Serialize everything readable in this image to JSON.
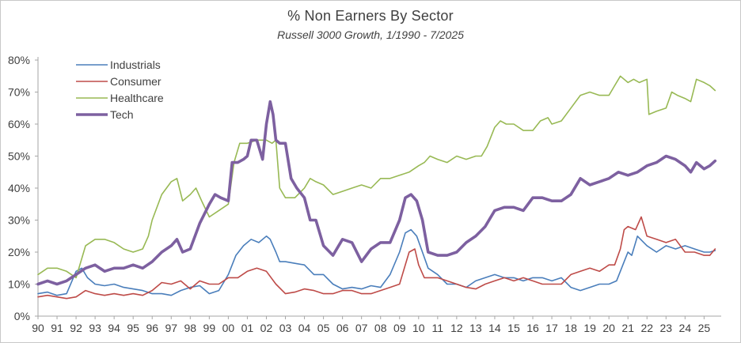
{
  "chart_data": {
    "type": "line",
    "title": "% Non Earners By Sector",
    "subtitle": "Russell 3000 Growth, 1/1990 - 7/2025",
    "xlabel": "",
    "ylabel": "",
    "xlim": [
      1990,
      2025.9
    ],
    "ylim": [
      0,
      0.8
    ],
    "grid": false,
    "legend_position": "top-left",
    "x_tick_labels": [
      "90",
      "91",
      "92",
      "93",
      "94",
      "95",
      "96",
      "97",
      "98",
      "99",
      "00",
      "01",
      "02",
      "03",
      "04",
      "05",
      "06",
      "07",
      "08",
      "09",
      "10",
      "11",
      "12",
      "13",
      "14",
      "15",
      "16",
      "17",
      "18",
      "19",
      "20",
      "21",
      "22",
      "23",
      "24",
      "25"
    ],
    "y_tick_labels": [
      "0%",
      "10%",
      "20%",
      "30%",
      "40%",
      "50%",
      "60%",
      "70%",
      "80%"
    ],
    "y_ticks": [
      0,
      0.1,
      0.2,
      0.3,
      0.4,
      0.5,
      0.6,
      0.7,
      0.8
    ],
    "series": [
      {
        "name": "Industrials",
        "color": "#4a7ebb",
        "width": 1.6,
        "x": [
          1990.0,
          1990.5,
          1991.0,
          1991.5,
          1992.0,
          1992.3,
          1992.6,
          1993.0,
          1993.5,
          1994.0,
          1994.5,
          1995.0,
          1995.5,
          1996.0,
          1996.5,
          1997.0,
          1997.5,
          1998.0,
          1998.5,
          1999.0,
          1999.5,
          2000.0,
          2000.4,
          2000.8,
          2001.2,
          2001.6,
          2002.0,
          2002.2,
          2002.5,
          2002.7,
          2003.0,
          2003.5,
          2004.0,
          2004.5,
          2005.0,
          2005.5,
          2006.0,
          2006.5,
          2007.0,
          2007.5,
          2008.0,
          2008.5,
          2009.0,
          2009.3,
          2009.6,
          2009.9,
          2010.2,
          2010.5,
          2011.0,
          2011.5,
          2012.0,
          2012.5,
          2013.0,
          2013.5,
          2014.0,
          2014.5,
          2015.0,
          2015.5,
          2016.0,
          2016.5,
          2017.0,
          2017.5,
          2018.0,
          2018.5,
          2019.0,
          2019.5,
          2020.0,
          2020.4,
          2020.8,
          2021.0,
          2021.2,
          2021.5,
          2022.0,
          2022.5,
          2023.0,
          2023.5,
          2024.0,
          2024.5,
          2025.0,
          2025.3,
          2025.58
        ],
        "y": [
          0.07,
          0.075,
          0.065,
          0.07,
          0.14,
          0.15,
          0.12,
          0.1,
          0.095,
          0.1,
          0.09,
          0.085,
          0.08,
          0.07,
          0.07,
          0.065,
          0.08,
          0.09,
          0.095,
          0.07,
          0.08,
          0.13,
          0.19,
          0.22,
          0.24,
          0.23,
          0.25,
          0.24,
          0.2,
          0.17,
          0.17,
          0.165,
          0.16,
          0.13,
          0.13,
          0.1,
          0.085,
          0.09,
          0.085,
          0.095,
          0.09,
          0.13,
          0.2,
          0.26,
          0.27,
          0.25,
          0.2,
          0.15,
          0.13,
          0.1,
          0.1,
          0.09,
          0.11,
          0.12,
          0.13,
          0.12,
          0.12,
          0.11,
          0.12,
          0.12,
          0.11,
          0.12,
          0.09,
          0.08,
          0.09,
          0.1,
          0.1,
          0.11,
          0.17,
          0.2,
          0.19,
          0.25,
          0.22,
          0.2,
          0.22,
          0.21,
          0.22,
          0.21,
          0.2,
          0.2,
          0.205
        ]
      },
      {
        "name": "Consumer",
        "color": "#be4b48",
        "width": 1.6,
        "x": [
          1990.0,
          1990.5,
          1991.0,
          1991.5,
          1992.0,
          1992.5,
          1993.0,
          1993.5,
          1994.0,
          1994.5,
          1995.0,
          1995.5,
          1996.0,
          1996.5,
          1997.0,
          1997.5,
          1998.0,
          1998.5,
          1999.0,
          1999.5,
          2000.0,
          2000.5,
          2001.0,
          2001.5,
          2002.0,
          2002.5,
          2003.0,
          2003.5,
          2004.0,
          2004.5,
          2005.0,
          2005.5,
          2006.0,
          2006.5,
          2007.0,
          2007.5,
          2008.0,
          2008.5,
          2009.0,
          2009.5,
          2009.8,
          2010.0,
          2010.3,
          2010.6,
          2011.0,
          2011.5,
          2012.0,
          2012.5,
          2013.0,
          2013.5,
          2014.0,
          2014.5,
          2015.0,
          2015.5,
          2016.0,
          2016.5,
          2017.0,
          2017.5,
          2018.0,
          2018.5,
          2019.0,
          2019.5,
          2020.0,
          2020.3,
          2020.6,
          2020.8,
          2021.0,
          2021.4,
          2021.7,
          2022.0,
          2022.5,
          2023.0,
          2023.5,
          2024.0,
          2024.5,
          2025.0,
          2025.3,
          2025.58
        ],
        "y": [
          0.06,
          0.065,
          0.06,
          0.055,
          0.06,
          0.08,
          0.07,
          0.065,
          0.07,
          0.065,
          0.07,
          0.065,
          0.08,
          0.105,
          0.1,
          0.11,
          0.085,
          0.11,
          0.1,
          0.1,
          0.12,
          0.12,
          0.14,
          0.15,
          0.14,
          0.1,
          0.07,
          0.075,
          0.085,
          0.08,
          0.07,
          0.07,
          0.08,
          0.08,
          0.07,
          0.07,
          0.08,
          0.09,
          0.1,
          0.2,
          0.21,
          0.16,
          0.12,
          0.12,
          0.12,
          0.11,
          0.1,
          0.09,
          0.085,
          0.1,
          0.11,
          0.12,
          0.11,
          0.12,
          0.11,
          0.1,
          0.1,
          0.1,
          0.13,
          0.14,
          0.15,
          0.14,
          0.16,
          0.16,
          0.21,
          0.27,
          0.28,
          0.27,
          0.31,
          0.25,
          0.24,
          0.23,
          0.24,
          0.2,
          0.2,
          0.19,
          0.19,
          0.21
        ]
      },
      {
        "name": "Healthcare",
        "color": "#98b954",
        "width": 1.6,
        "x": [
          1990.0,
          1990.5,
          1991.0,
          1991.5,
          1992.0,
          1992.5,
          1993.0,
          1993.5,
          1994.0,
          1994.5,
          1995.0,
          1995.5,
          1995.8,
          1996.0,
          1996.5,
          1997.0,
          1997.3,
          1997.6,
          1998.0,
          1998.3,
          1998.6,
          1999.0,
          1999.5,
          2000.0,
          2000.3,
          2000.6,
          2001.0,
          2001.5,
          2002.0,
          2002.3,
          2002.5,
          2002.7,
          2003.0,
          2003.5,
          2004.0,
          2004.3,
          2004.6,
          2005.0,
          2005.5,
          2006.0,
          2006.5,
          2007.0,
          2007.5,
          2008.0,
          2008.5,
          2009.0,
          2009.5,
          2010.0,
          2010.3,
          2010.6,
          2011.0,
          2011.5,
          2012.0,
          2012.5,
          2013.0,
          2013.3,
          2013.6,
          2014.0,
          2014.3,
          2014.6,
          2015.0,
          2015.5,
          2016.0,
          2016.4,
          2016.8,
          2017.0,
          2017.5,
          2018.0,
          2018.5,
          2019.0,
          2019.5,
          2020.0,
          2020.3,
          2020.6,
          2021.0,
          2021.3,
          2021.6,
          2022.0,
          2022.1,
          2022.5,
          2023.0,
          2023.3,
          2023.6,
          2024.0,
          2024.3,
          2024.6,
          2025.0,
          2025.3,
          2025.58
        ],
        "y": [
          0.13,
          0.15,
          0.15,
          0.14,
          0.12,
          0.22,
          0.24,
          0.24,
          0.23,
          0.21,
          0.2,
          0.21,
          0.25,
          0.3,
          0.38,
          0.42,
          0.43,
          0.36,
          0.38,
          0.4,
          0.36,
          0.31,
          0.33,
          0.35,
          0.48,
          0.54,
          0.54,
          0.55,
          0.55,
          0.54,
          0.55,
          0.4,
          0.37,
          0.37,
          0.4,
          0.43,
          0.42,
          0.41,
          0.38,
          0.39,
          0.4,
          0.41,
          0.4,
          0.43,
          0.43,
          0.44,
          0.45,
          0.47,
          0.48,
          0.5,
          0.49,
          0.48,
          0.5,
          0.49,
          0.5,
          0.5,
          0.53,
          0.59,
          0.61,
          0.6,
          0.6,
          0.58,
          0.58,
          0.61,
          0.62,
          0.6,
          0.61,
          0.65,
          0.69,
          0.7,
          0.69,
          0.69,
          0.72,
          0.75,
          0.73,
          0.74,
          0.73,
          0.74,
          0.63,
          0.64,
          0.65,
          0.7,
          0.69,
          0.68,
          0.67,
          0.74,
          0.73,
          0.72,
          0.705
        ]
      },
      {
        "name": "Tech",
        "color": "#7d60a0",
        "width": 3.6,
        "x": [
          1990.0,
          1990.5,
          1991.0,
          1991.5,
          1992.0,
          1992.5,
          1993.0,
          1993.5,
          1994.0,
          1994.5,
          1995.0,
          1995.5,
          1996.0,
          1996.5,
          1997.0,
          1997.3,
          1997.6,
          1998.0,
          1998.5,
          1999.0,
          1999.3,
          1999.6,
          2000.0,
          2000.2,
          2000.5,
          2000.8,
          2001.0,
          2001.2,
          2001.5,
          2001.8,
          2002.0,
          2002.2,
          2002.35,
          2002.5,
          2002.7,
          2003.0,
          2003.3,
          2003.6,
          2004.0,
          2004.3,
          2004.6,
          2005.0,
          2005.5,
          2006.0,
          2006.5,
          2007.0,
          2007.5,
          2008.0,
          2008.5,
          2009.0,
          2009.3,
          2009.6,
          2009.9,
          2010.2,
          2010.5,
          2011.0,
          2011.5,
          2012.0,
          2012.5,
          2013.0,
          2013.5,
          2014.0,
          2014.5,
          2015.0,
          2015.5,
          2016.0,
          2016.5,
          2017.0,
          2017.5,
          2018.0,
          2018.5,
          2019.0,
          2019.5,
          2020.0,
          2020.5,
          2021.0,
          2021.5,
          2022.0,
          2022.5,
          2023.0,
          2023.5,
          2024.0,
          2024.3,
          2024.6,
          2025.0,
          2025.3,
          2025.58
        ],
        "y": [
          0.1,
          0.11,
          0.1,
          0.11,
          0.13,
          0.15,
          0.16,
          0.14,
          0.15,
          0.15,
          0.16,
          0.15,
          0.17,
          0.2,
          0.22,
          0.24,
          0.2,
          0.21,
          0.29,
          0.35,
          0.38,
          0.37,
          0.36,
          0.48,
          0.48,
          0.49,
          0.5,
          0.55,
          0.55,
          0.49,
          0.6,
          0.67,
          0.63,
          0.55,
          0.54,
          0.54,
          0.43,
          0.4,
          0.37,
          0.3,
          0.3,
          0.22,
          0.19,
          0.24,
          0.23,
          0.17,
          0.21,
          0.23,
          0.23,
          0.3,
          0.37,
          0.38,
          0.36,
          0.3,
          0.2,
          0.19,
          0.19,
          0.2,
          0.23,
          0.25,
          0.28,
          0.33,
          0.34,
          0.34,
          0.33,
          0.37,
          0.37,
          0.36,
          0.36,
          0.38,
          0.43,
          0.41,
          0.42,
          0.43,
          0.45,
          0.44,
          0.45,
          0.47,
          0.48,
          0.5,
          0.49,
          0.47,
          0.45,
          0.48,
          0.46,
          0.47,
          0.485
        ]
      }
    ]
  }
}
